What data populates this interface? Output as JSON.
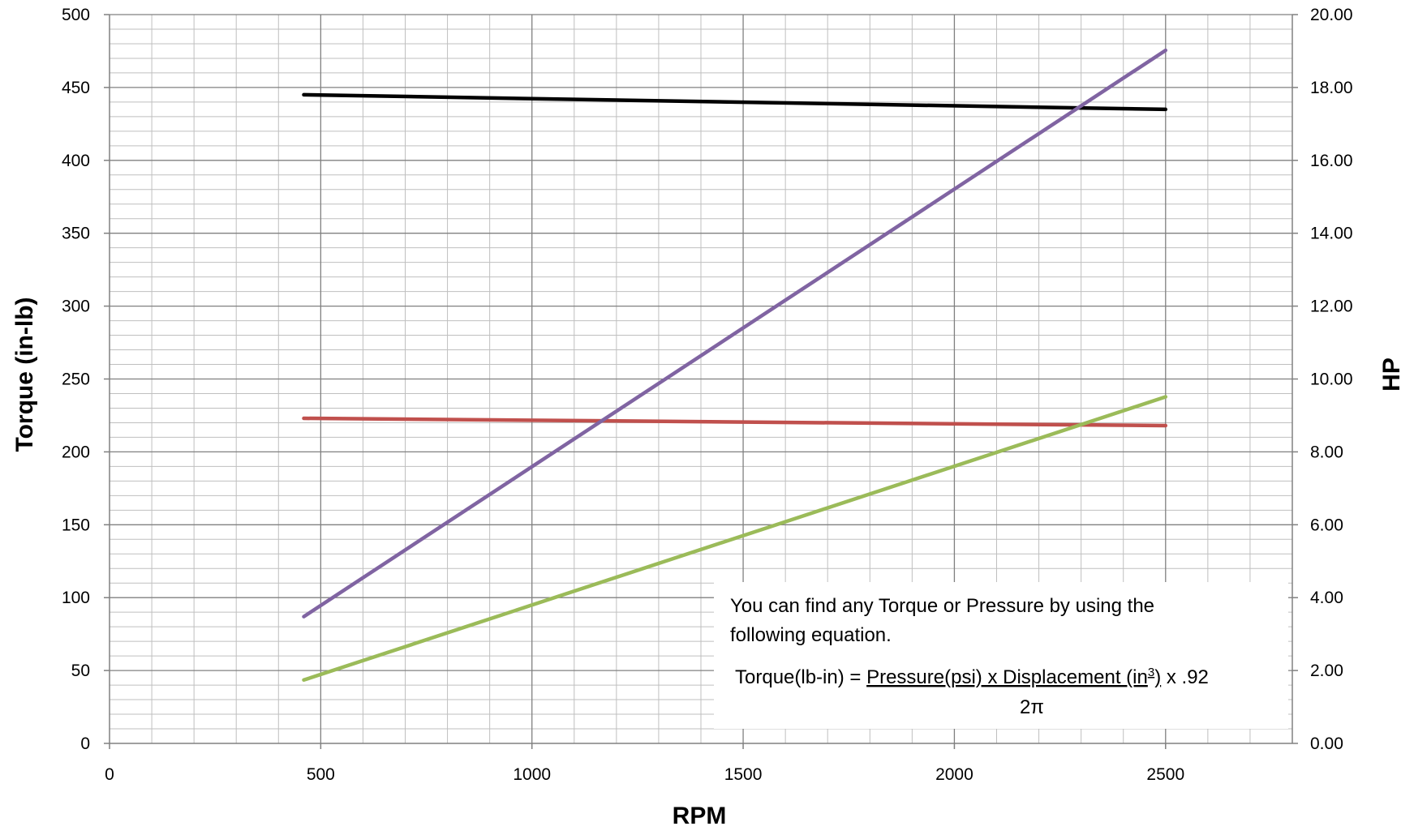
{
  "chart_data": {
    "type": "line",
    "xlabel": "RPM",
    "ylabel": "Torque (in-lb)",
    "y2label": "HP",
    "xlim": [
      0,
      2800
    ],
    "ylim": [
      0,
      500
    ],
    "y2lim": [
      0,
      20
    ],
    "x_ticks": [
      "0",
      "500",
      "1000",
      "1500",
      "2000",
      "2500"
    ],
    "y_ticks": [
      "0",
      "50",
      "100",
      "150",
      "200",
      "250",
      "300",
      "350",
      "400",
      "450",
      "500"
    ],
    "y2_ticks": [
      "0.00",
      "2.00",
      "4.00",
      "6.00",
      "8.00",
      "10.00",
      "12.00",
      "14.00",
      "16.00",
      "18.00",
      "20.00"
    ],
    "grid": true,
    "series": [
      {
        "axis": "left",
        "color": "#000000",
        "points": [
          [
            460,
            445
          ],
          [
            2500,
            435
          ]
        ]
      },
      {
        "axis": "left",
        "color": "#c0504d",
        "points": [
          [
            460,
            223
          ],
          [
            2500,
            218
          ]
        ]
      },
      {
        "axis": "right",
        "color": "#8064a2",
        "points": [
          [
            460,
            3.48
          ],
          [
            2500,
            19.02
          ]
        ]
      },
      {
        "axis": "right",
        "color": "#9bbb59",
        "points": [
          [
            460,
            1.74
          ],
          [
            2500,
            9.51
          ]
        ]
      }
    ],
    "annotation": {
      "line1": "You can find any Torque or Pressure by using the",
      "line2": "following equation.",
      "eq_prefix": "Torque(lb-in) = ",
      "eq_numerator_pre": "Pressure(psi) x Displacement (in",
      "eq_superscript": "3",
      "eq_numerator_post": ")",
      "eq_suffix": "  x .92",
      "eq_denominator": "2π"
    }
  }
}
